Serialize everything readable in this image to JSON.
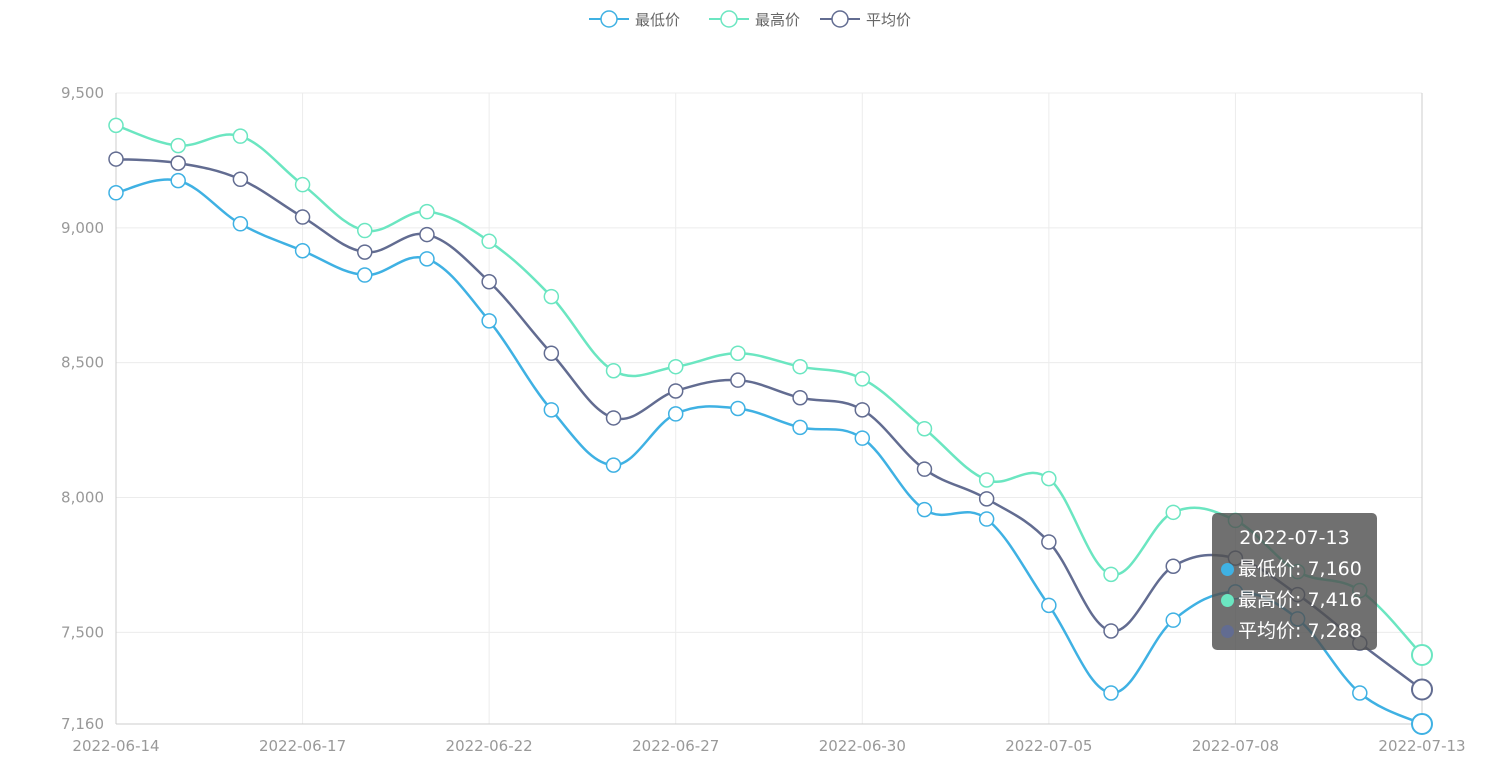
{
  "chart_data": {
    "type": "line",
    "smooth": true,
    "legend_position": "top-center",
    "grid": true,
    "x": [
      "2022-06-14",
      "2022-06-15",
      "2022-06-16",
      "2022-06-17",
      "2022-06-20",
      "2022-06-21",
      "2022-06-22",
      "2022-06-23",
      "2022-06-24",
      "2022-06-27",
      "2022-06-28",
      "2022-06-29",
      "2022-06-30",
      "2022-07-01",
      "2022-07-04",
      "2022-07-05",
      "2022-07-06",
      "2022-07-07",
      "2022-07-08",
      "2022-07-11",
      "2022-07-12",
      "2022-07-13"
    ],
    "x_tick_labels": [
      "2022-06-14",
      "2022-06-17",
      "2022-06-22",
      "2022-06-27",
      "2022-06-30",
      "2022-07-05",
      "2022-07-08",
      "2022-07-13"
    ],
    "y_tick_labels": [
      "7,160",
      "7,500",
      "8,000",
      "8,500",
      "9,000",
      "9,500"
    ],
    "ylim": [
      7160,
      9500
    ],
    "series": [
      {
        "name": "最低价",
        "color": "#3fb1e3",
        "values": [
          9130,
          9175,
          9015,
          8915,
          8825,
          8885,
          8655,
          8325,
          8120,
          8310,
          8330,
          8260,
          8220,
          7955,
          7920,
          7600,
          7275,
          7545,
          7650,
          7550,
          7275,
          7160
        ]
      },
      {
        "name": "最高价",
        "color": "#6be6c1",
        "values": [
          9380,
          9305,
          9340,
          9160,
          8990,
          9060,
          8950,
          8745,
          8470,
          8485,
          8535,
          8485,
          8440,
          8255,
          8065,
          8070,
          7715,
          7945,
          7915,
          7725,
          7655,
          7416
        ]
      },
      {
        "name": "平均价",
        "color": "#626c91",
        "values": [
          9255,
          9240,
          9180,
          9040,
          8910,
          8975,
          8800,
          8535,
          8295,
          8395,
          8435,
          8370,
          8325,
          8105,
          7995,
          7835,
          7505,
          7745,
          7775,
          7640,
          7460,
          7288
        ]
      }
    ],
    "tooltip": {
      "title": "2022-07-13",
      "rows": [
        {
          "label": "最低价: 7,160",
          "color": "#3fb1e3"
        },
        {
          "label": "最高价: 7,416",
          "color": "#6be6c1"
        },
        {
          "label": "平均价: 7,288",
          "color": "#626c91"
        }
      ]
    }
  }
}
